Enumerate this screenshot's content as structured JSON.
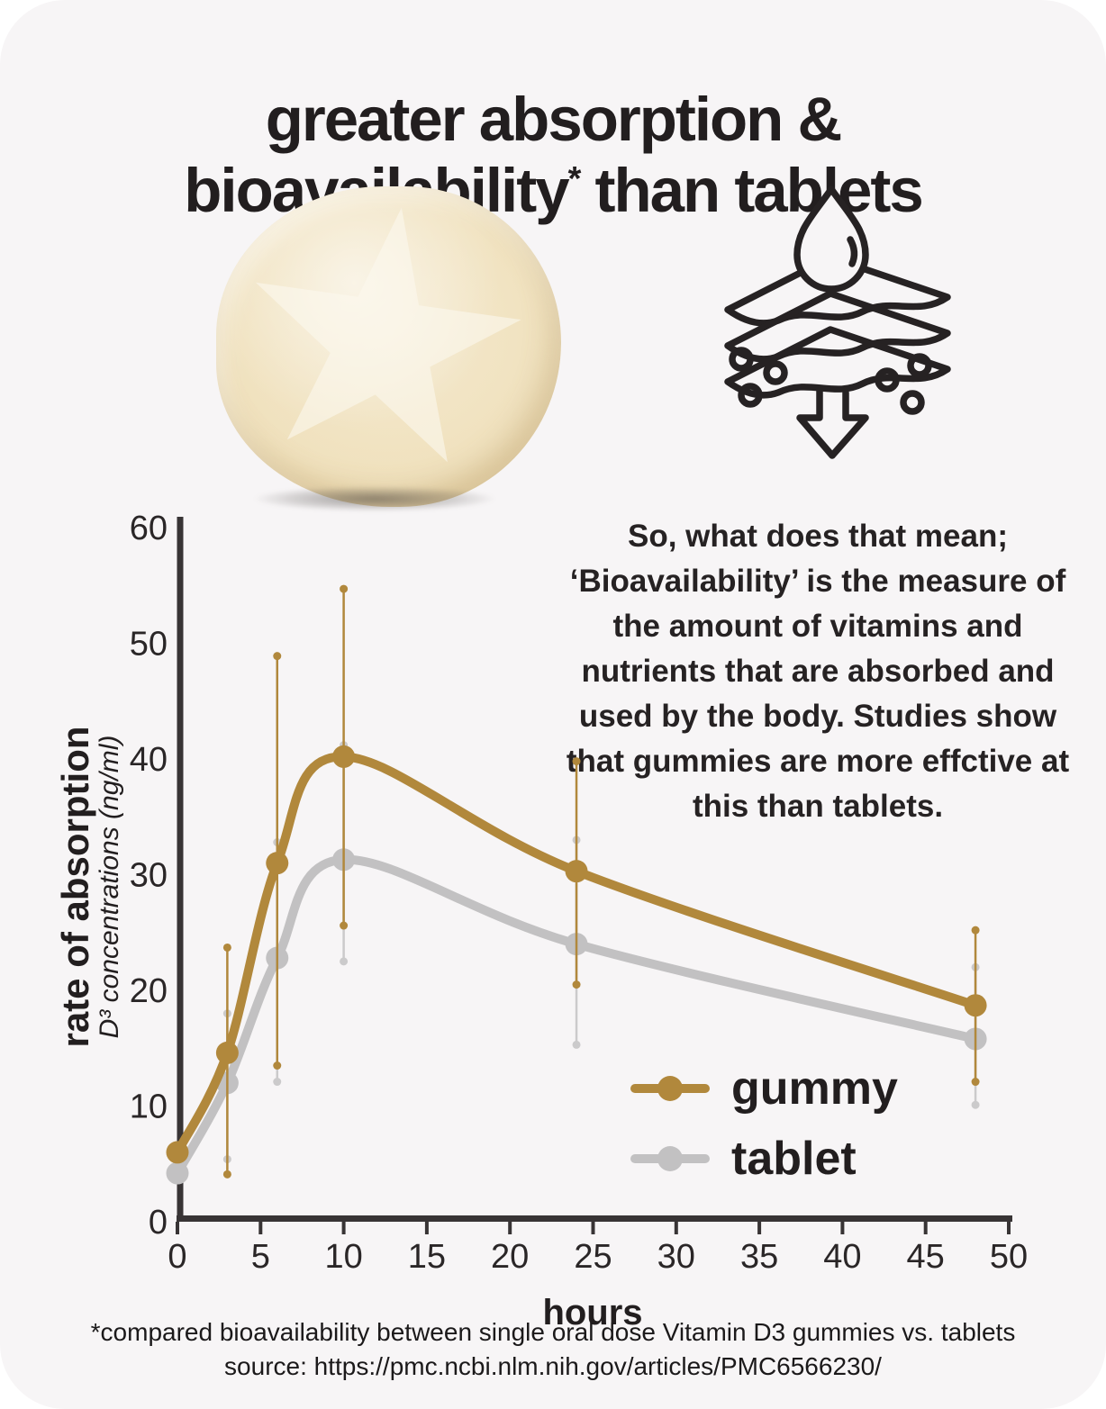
{
  "title": {
    "line1": "greater absorption &",
    "line2_pre": "bioavailability",
    "line2_sup": "*",
    "line2_post": " than tablets"
  },
  "icons": {
    "absorption_layers": "droplet over permeable layers with particles and downward arrow",
    "gummy_photo": "round cream vitamin gummy with embossed star"
  },
  "blurb": "So, what does that mean; ‘Bioavailability’ is the measure of the amount of vitamins and nutrients that are absorbed and used by the body. Studies show that gummies are more effctive at this than tablets.",
  "chart_data": {
    "type": "line",
    "title": "",
    "xlabel": "hours",
    "ylabel_bold": "rate of absorption",
    "ylabel_sub": "D³ concentrations (ng/ml)",
    "xlim": [
      0,
      50
    ],
    "ylim": [
      0,
      60
    ],
    "x_ticks": [
      0,
      5,
      10,
      15,
      20,
      25,
      30,
      35,
      40,
      45,
      50
    ],
    "y_ticks": [
      0,
      10,
      20,
      30,
      40,
      50,
      60
    ],
    "grid": false,
    "legend_position": "inside bottom-right",
    "x": [
      0,
      3,
      6,
      10,
      24,
      48
    ],
    "series": [
      {
        "name": "gummy",
        "color": "#b1883c",
        "err_color": "#b1883c",
        "values": [
          6.0,
          14.6,
          31.0,
          40.2,
          30.3,
          18.7
        ],
        "err_low": [
          null,
          4.1,
          13.5,
          25.6,
          20.5,
          12.1
        ],
        "err_high": [
          null,
          23.7,
          48.9,
          54.7,
          39.8,
          25.2
        ]
      },
      {
        "name": "tablet",
        "color": "#c2c1c2",
        "err_color": "#cbcacb",
        "values": [
          4.2,
          12.0,
          22.8,
          31.3,
          24.0,
          15.8
        ],
        "err_low": [
          null,
          5.4,
          12.1,
          22.5,
          15.3,
          10.1
        ],
        "err_high": [
          null,
          18.0,
          32.8,
          41.2,
          33.0,
          22.0
        ]
      }
    ]
  },
  "footer": {
    "line1": "*compared bioavailability between single oral dose Vitamin D3 gummies vs. tablets",
    "line2": "source: https://pmc.ncbi.nlm.nih.gov/articles/PMC6566230/"
  },
  "colors": {
    "background": "#f7f5f6",
    "text": "#221e1f",
    "axis": "#383435",
    "gummy_gold": "#b1883c",
    "tablet_gray": "#c2c1c2"
  }
}
